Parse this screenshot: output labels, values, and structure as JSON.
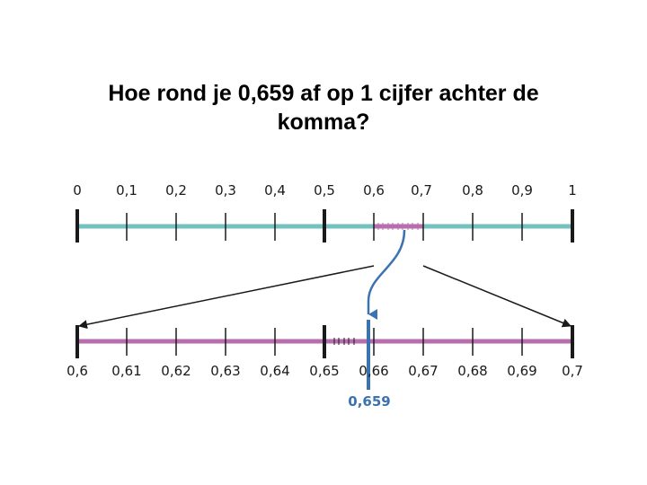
{
  "title": {
    "line1": "Hoe rond je 0,659 af op 1 cijfer achter de",
    "line2": "komma?"
  },
  "top_line": {
    "labels": [
      "0",
      "0,1",
      "0,2",
      "0,3",
      "0,4",
      "0,5",
      "0,6",
      "0,7",
      "0,8",
      "0,9",
      "1"
    ],
    "color": "#74c2bf"
  },
  "bottom_line": {
    "labels": [
      "0,6",
      "0,61",
      "0,62",
      "0,63",
      "0,64",
      "0,65",
      "0,66",
      "0,67",
      "0,68",
      "0,69",
      "0,7"
    ],
    "color": "#b86ead"
  },
  "marker": {
    "value_label": "0,659",
    "color": "#3c72b0"
  }
}
